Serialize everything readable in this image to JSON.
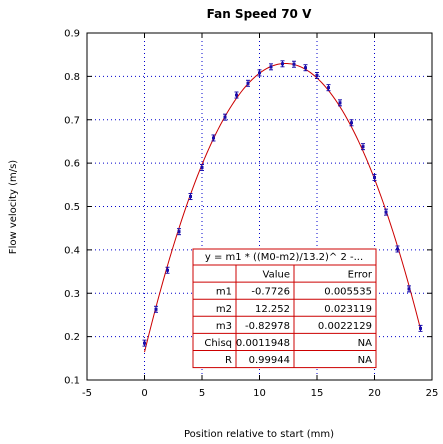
{
  "chart_data": {
    "type": "scatter",
    "title": "Fan Speed 70 V",
    "xlabel": "Position relative to start (mm)",
    "ylabel": "Flow velocity (m/s)",
    "xlim": [
      -5,
      25
    ],
    "ylim": [
      0.1,
      0.9
    ],
    "xticks": [
      "-5",
      "0",
      "5",
      "10",
      "15",
      "20",
      "25"
    ],
    "yticks": [
      "0.1",
      "0.2",
      "0.3",
      "0.4",
      "0.5",
      "0.6",
      "0.7",
      "0.8",
      "0.9"
    ],
    "grid": true,
    "colors": {
      "points": "#1a0dab",
      "fit": "#cc0000",
      "grid": "#0000cc",
      "table": "#cc0000"
    },
    "series": [
      {
        "x": [
          0,
          1,
          2,
          3,
          4,
          5,
          6,
          7,
          8,
          9,
          10,
          11,
          12,
          13,
          14,
          15,
          16,
          17,
          18,
          19,
          20,
          21,
          22,
          23,
          24
        ],
        "y": [
          0.185,
          0.263,
          0.353,
          0.442,
          0.523,
          0.59,
          0.658,
          0.706,
          0.757,
          0.784,
          0.808,
          0.822,
          0.829,
          0.828,
          0.82,
          0.802,
          0.774,
          0.739,
          0.693,
          0.638,
          0.567,
          0.487,
          0.402,
          0.31,
          0.219
        ],
        "err": [
          0.005,
          0.004,
          0.004,
          0.005,
          0.005,
          0.006,
          0.006,
          0.006,
          0.007,
          0.006,
          0.007,
          0.006,
          0.006,
          0.006,
          0.006,
          0.006,
          0.007,
          0.006,
          0.006,
          0.005,
          0.005,
          0.004,
          0.004,
          0.003,
          0.003
        ]
      }
    ],
    "fit": {
      "equation": "y = m1 * ((M0-m2)/13.2)^ 2 -...",
      "m1": -0.7726,
      "m2": 12.252,
      "m3": -0.82978,
      "table": {
        "headers": [
          "",
          "Value",
          "Error"
        ],
        "rows": [
          [
            "m1",
            "-0.7726",
            "0.005535"
          ],
          [
            "m2",
            "12.252",
            "0.023119"
          ],
          [
            "m3",
            "-0.82978",
            "0.0022129"
          ],
          [
            "Chisq",
            "0.0011948",
            "NA"
          ],
          [
            "R",
            "0.99944",
            "NA"
          ]
        ]
      }
    }
  }
}
